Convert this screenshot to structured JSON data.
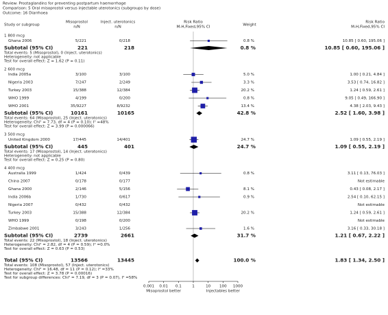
{
  "header": {
    "review": "Review:   Prostaglandins for preventing postpartum haemorrhage",
    "comparison": "Comparison:   5 Oral misoprostol versus injectable uterotonics (subgroups by dose)",
    "outcome": "Outcome:   16 Diarrhoea"
  },
  "columns": {
    "study": "Study or subgroup",
    "misoprostol": "Misoprostol",
    "misoprostol_unit": "n/N",
    "injectables": "Inject. uterotonics",
    "injectables_unit": "n/N",
    "plot": "Risk Ratio",
    "plot_method": "M-H,Fixed,95% CI",
    "weight": "Weight",
    "rr": "Risk Ratio",
    "rr_method": "M-H,Fixed,95% CI"
  },
  "groups": [
    {
      "title": "1 800 mcg",
      "studies": [
        {
          "name": "Ghana 2006",
          "misoprostol": "5/221",
          "injectables": "0/218",
          "weight": {
            "value": 0.8,
            "label": "0.8 %"
          },
          "rr": {
            "value": 10.85,
            "lo": 0.6,
            "hi": 195.06,
            "label": "10.85 [ 0.60, 195.06 ]"
          }
        }
      ],
      "subtotal": {
        "name": "Subtotal (95% CI)",
        "misoprostol": "221",
        "injectables": "218",
        "weight": {
          "value": 0.8,
          "label": "0.8 %"
        },
        "rr": {
          "value": 10.85,
          "lo": 0.6,
          "hi": 195.06,
          "label": "10.85 [ 0.60, 195.06 ]"
        }
      },
      "notes": [
        "Total events: 5 (Misoprostol), 0 (Inject. uterotonics)",
        "Heterogeneity: not applicable",
        "Test for overall effect: Z = 1.62 (P = 0.11)"
      ]
    },
    {
      "title": "2 600 mcg",
      "studies": [
        {
          "name": "India 2005a",
          "misoprostol": "3/100",
          "injectables": "3/100",
          "weight": {
            "value": 5.0,
            "label": "5.0 %"
          },
          "rr": {
            "value": 1.0,
            "lo": 0.21,
            "hi": 4.84,
            "label": "1.00 [ 0.21, 4.84 ]"
          }
        },
        {
          "name": "Nigeria 2003",
          "misoprostol": "7/247",
          "injectables": "2/249",
          "weight": {
            "value": 3.3,
            "label": "3.3 %"
          },
          "rr": {
            "value": 3.53,
            "lo": 0.74,
            "hi": 16.82,
            "label": "3.53 [ 0.74, 16.82 ]"
          }
        },
        {
          "name": "Turkey 2003",
          "misoprostol": "15/388",
          "injectables": "12/384",
          "weight": {
            "value": 20.2,
            "label": "20.2 %"
          },
          "rr": {
            "value": 1.24,
            "lo": 0.59,
            "hi": 2.61,
            "label": "1.24 [ 0.59, 2.61 ]"
          }
        },
        {
          "name": "WHO 1999",
          "misoprostol": "4/199",
          "injectables": "0/200",
          "weight": {
            "value": 0.8,
            "label": "0.8 %"
          },
          "rr": {
            "value": 9.05,
            "lo": 0.49,
            "hi": 166.9,
            "label": "9.05 [ 0.49, 166.90 ]"
          }
        },
        {
          "name": "WHO 2001",
          "misoprostol": "35/9227",
          "injectables": "8/9232",
          "weight": {
            "value": 13.4,
            "label": "13.4 %"
          },
          "rr": {
            "value": 4.38,
            "lo": 2.03,
            "hi": 9.43,
            "label": "4.38 [ 2.03, 9.43 ]"
          }
        }
      ],
      "subtotal": {
        "name": "Subtotal (95% CI)",
        "misoprostol": "10161",
        "injectables": "10165",
        "weight": {
          "value": 42.8,
          "label": "42.8 %"
        },
        "rr": {
          "value": 2.52,
          "lo": 1.6,
          "hi": 3.98,
          "label": "2.52 [ 1.60, 3.98 ]"
        }
      },
      "notes": [
        "Total events: 64 (Misoprostol), 25 (Inject. uterotonics)",
        "Heterogeneity: Chi² = 7.73, df = 4 (P = 0.10); I² =48%",
        "Test for overall effect: Z = 3.99 (P = 0.000066)"
      ]
    },
    {
      "title": "3 500 mcg",
      "studies": [
        {
          "name": "United Kingdom 2000",
          "misoprostol": "17/445",
          "injectables": "14/401",
          "weight": {
            "value": 24.7,
            "label": "24.7 %"
          },
          "rr": {
            "value": 1.09,
            "lo": 0.55,
            "hi": 2.19,
            "label": "1.09 [ 0.55, 2.19 ]"
          }
        }
      ],
      "subtotal": {
        "name": "Subtotal (95% CI)",
        "misoprostol": "445",
        "injectables": "401",
        "weight": {
          "value": 24.7,
          "label": "24.7 %"
        },
        "rr": {
          "value": 1.09,
          "lo": 0.55,
          "hi": 2.19,
          "label": "1.09 [ 0.55, 2.19 ]"
        }
      },
      "notes": [
        "Total events: 17 (Misoprostol), 14 (Inject. uterotonics)",
        "Heterogeneity: not applicable",
        "Test for overall effect: Z = 0.25 (P = 0.80)"
      ]
    },
    {
      "title": "4 400 mcg",
      "studies": [
        {
          "name": "Australia 1999",
          "misoprostol": "1/424",
          "injectables": "0/439",
          "weight": {
            "value": 0.8,
            "label": "0.8 %"
          },
          "rr": {
            "value": 3.11,
            "lo": 0.13,
            "hi": 76.03,
            "label": "3.11 [ 0.13, 76.03 ]"
          }
        },
        {
          "name": "China 2007",
          "misoprostol": "0/178",
          "injectables": "0/177",
          "rr": {
            "label": "Not estimable"
          }
        },
        {
          "name": "Ghana 2000",
          "misoprostol": "2/146",
          "injectables": "5/156",
          "weight": {
            "value": 8.1,
            "label": "8.1 %"
          },
          "rr": {
            "value": 0.43,
            "lo": 0.08,
            "hi": 2.17,
            "label": "0.43 [ 0.08, 2.17 ]"
          }
        },
        {
          "name": "India 2006b",
          "misoprostol": "1/730",
          "injectables": "0/617",
          "weight": {
            "value": 0.9,
            "label": "0.9 %"
          },
          "rr": {
            "value": 2.54,
            "lo": 0.1,
            "hi": 62.15,
            "label": "2.54 [ 0.10, 62.15 ]"
          }
        },
        {
          "name": "Nigeria 2007",
          "misoprostol": "0/432",
          "injectables": "0/432",
          "rr": {
            "label": "Not estimable"
          }
        },
        {
          "name": "Turkey 2003",
          "misoprostol": "15/388",
          "injectables": "12/384",
          "weight": {
            "value": 20.2,
            "label": "20.2 %"
          },
          "rr": {
            "value": 1.24,
            "lo": 0.59,
            "hi": 2.61,
            "label": "1.24 [ 0.59, 2.61 ]"
          }
        },
        {
          "name": "WHO 1999",
          "misoprostol": "0/198",
          "injectables": "0/200",
          "rr": {
            "label": "Not estimable"
          }
        },
        {
          "name": "Zimbabwe 2001",
          "misoprostol": "3/243",
          "injectables": "1/256",
          "weight": {
            "value": 1.6,
            "label": "1.6 %"
          },
          "rr": {
            "value": 3.16,
            "lo": 0.33,
            "hi": 30.18,
            "label": "3.16 [ 0.33, 30.18 ]"
          }
        }
      ],
      "subtotal": {
        "name": "Subtotal (95% CI)",
        "misoprostol": "2739",
        "injectables": "2661",
        "weight": {
          "value": 31.7,
          "label": "31.7 %"
        },
        "rr": {
          "value": 1.21,
          "lo": 0.67,
          "hi": 2.22,
          "label": "1.21 [ 0.67, 2.22 ]"
        }
      },
      "notes": [
        "Total events: 22 (Misoprostol), 18 (Inject. uterotonics)",
        "Heterogeneity: Chi² = 2.82, df = 4 (P = 0.59); I² =0.0%",
        "Test for overall effect: Z = 0.63 (P = 0.53)"
      ]
    }
  ],
  "total": {
    "name": "Total (95% CI)",
    "misoprostol": "13566",
    "injectables": "13445",
    "weight": {
      "value": 100.0,
      "label": "100.0 %"
    },
    "rr": {
      "value": 1.83,
      "lo": 1.34,
      "hi": 2.5,
      "label": "1.83 [ 1.34, 2.50 ]"
    },
    "notes": [
      "Total events: 108 (Misoprostol), 57 (Inject. uterotonics)",
      "Heterogeneity: Chi² = 16.48, df = 11 (P = 0.12); I² =33%",
      "Test for overall effect: Z = 3.78 (P = 0.00016)",
      "Test for subgroup differences: Chi² = 7.19, df = 3 (P = 0.07), I² =58%"
    ]
  },
  "axis": {
    "scale": "log",
    "xlim": [
      0.001,
      1000
    ],
    "xticks": [
      0.001,
      0.01,
      0.1,
      1,
      10,
      100,
      1000
    ],
    "left_label": "Misoprostol better",
    "right_label": "Injectables better"
  }
}
